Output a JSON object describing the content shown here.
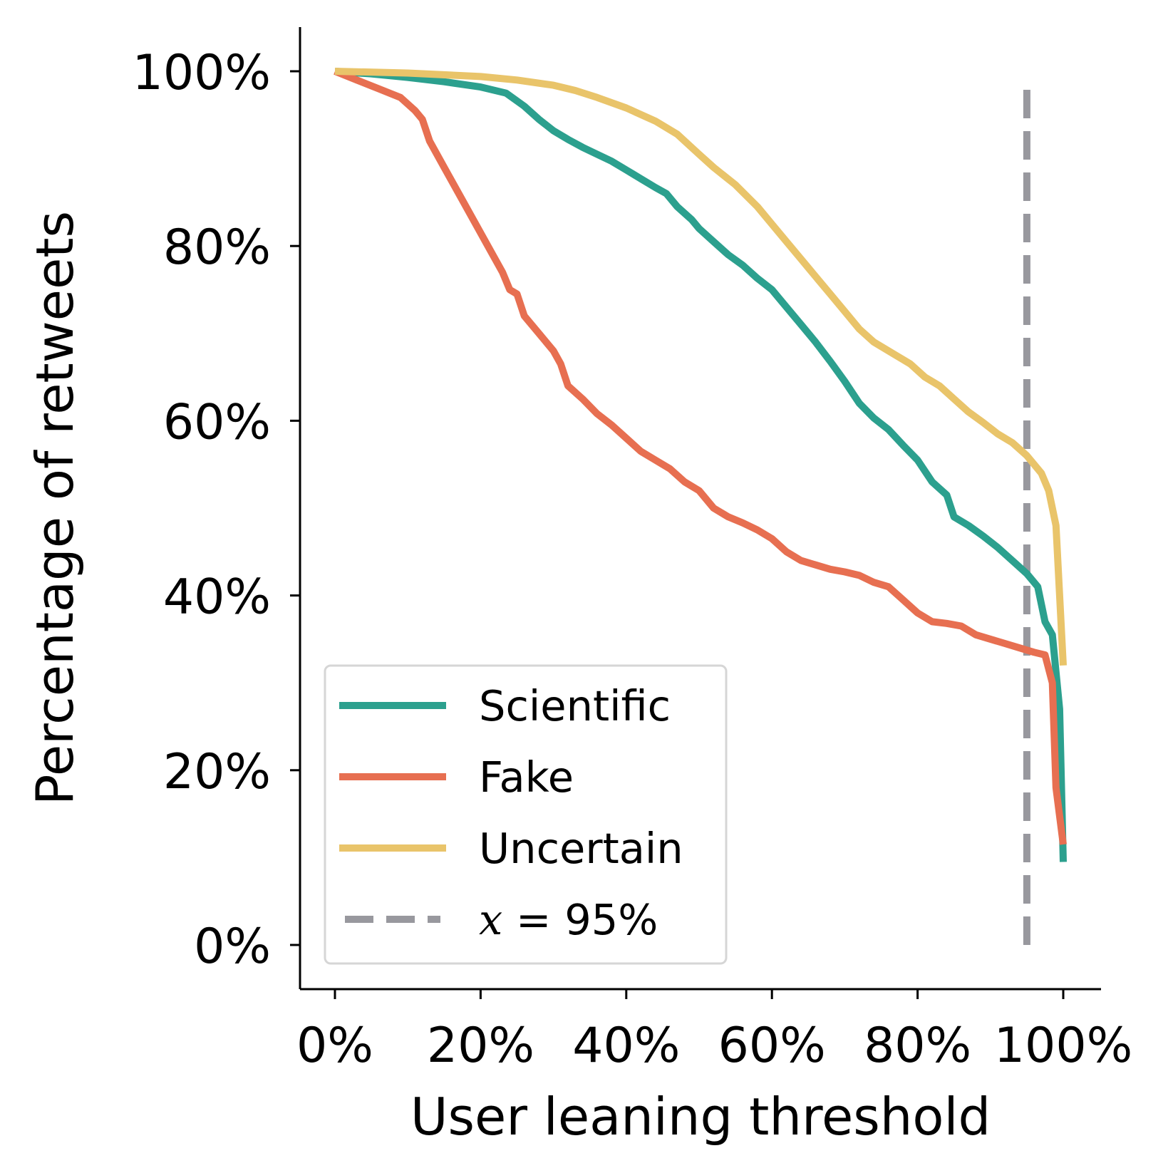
{
  "chart_data": {
    "type": "line",
    "xlabel": "User leaning threshold",
    "ylabel": "Percentage of retweets",
    "xlim": [
      -0.05,
      1.05
    ],
    "ylim": [
      -0.05,
      1.05
    ],
    "xticks": [
      0,
      0.2,
      0.4,
      0.6,
      0.8,
      1.0
    ],
    "xtick_labels": [
      "0%",
      "20%",
      "40%",
      "60%",
      "80%",
      "100%"
    ],
    "yticks": [
      0,
      0.2,
      0.4,
      0.6,
      0.8,
      1.0
    ],
    "ytick_labels": [
      "0%",
      "20%",
      "40%",
      "60%",
      "80%",
      "100%"
    ],
    "grid": false,
    "legend_position": "lower-left",
    "series": [
      {
        "name": "Scientific",
        "color": "#2ca08e",
        "points": [
          [
            0,
            1.0
          ],
          [
            0.05,
            0.997
          ],
          [
            0.1,
            0.993
          ],
          [
            0.15,
            0.988
          ],
          [
            0.2,
            0.982
          ],
          [
            0.235,
            0.975
          ],
          [
            0.26,
            0.96
          ],
          [
            0.28,
            0.945
          ],
          [
            0.3,
            0.932
          ],
          [
            0.32,
            0.922
          ],
          [
            0.34,
            0.913
          ],
          [
            0.36,
            0.905
          ],
          [
            0.38,
            0.897
          ],
          [
            0.4,
            0.887
          ],
          [
            0.42,
            0.877
          ],
          [
            0.44,
            0.867
          ],
          [
            0.455,
            0.86
          ],
          [
            0.47,
            0.845
          ],
          [
            0.49,
            0.83
          ],
          [
            0.5,
            0.82
          ],
          [
            0.52,
            0.805
          ],
          [
            0.54,
            0.79
          ],
          [
            0.56,
            0.778
          ],
          [
            0.58,
            0.763
          ],
          [
            0.6,
            0.75
          ],
          [
            0.62,
            0.73
          ],
          [
            0.64,
            0.71
          ],
          [
            0.66,
            0.69
          ],
          [
            0.68,
            0.668
          ],
          [
            0.7,
            0.645
          ],
          [
            0.72,
            0.62
          ],
          [
            0.74,
            0.603
          ],
          [
            0.76,
            0.59
          ],
          [
            0.78,
            0.572
          ],
          [
            0.8,
            0.555
          ],
          [
            0.82,
            0.53
          ],
          [
            0.84,
            0.515
          ],
          [
            0.85,
            0.49
          ],
          [
            0.87,
            0.48
          ],
          [
            0.89,
            0.468
          ],
          [
            0.91,
            0.455
          ],
          [
            0.93,
            0.44
          ],
          [
            0.95,
            0.425
          ],
          [
            0.965,
            0.41
          ],
          [
            0.975,
            0.37
          ],
          [
            0.985,
            0.355
          ],
          [
            0.995,
            0.27
          ],
          [
            1.0,
            0.095
          ]
        ]
      },
      {
        "name": "Fake",
        "color": "#e76f51",
        "points": [
          [
            0,
            1.0
          ],
          [
            0.03,
            0.99
          ],
          [
            0.06,
            0.98
          ],
          [
            0.09,
            0.97
          ],
          [
            0.11,
            0.955
          ],
          [
            0.12,
            0.945
          ],
          [
            0.13,
            0.92
          ],
          [
            0.15,
            0.89
          ],
          [
            0.17,
            0.86
          ],
          [
            0.19,
            0.83
          ],
          [
            0.21,
            0.8
          ],
          [
            0.23,
            0.77
          ],
          [
            0.24,
            0.75
          ],
          [
            0.25,
            0.745
          ],
          [
            0.26,
            0.72
          ],
          [
            0.28,
            0.7
          ],
          [
            0.3,
            0.68
          ],
          [
            0.31,
            0.665
          ],
          [
            0.32,
            0.64
          ],
          [
            0.34,
            0.625
          ],
          [
            0.36,
            0.608
          ],
          [
            0.38,
            0.595
          ],
          [
            0.4,
            0.58
          ],
          [
            0.42,
            0.565
          ],
          [
            0.44,
            0.555
          ],
          [
            0.46,
            0.545
          ],
          [
            0.48,
            0.53
          ],
          [
            0.5,
            0.52
          ],
          [
            0.52,
            0.5
          ],
          [
            0.54,
            0.49
          ],
          [
            0.56,
            0.483
          ],
          [
            0.58,
            0.475
          ],
          [
            0.6,
            0.465
          ],
          [
            0.62,
            0.45
          ],
          [
            0.64,
            0.44
          ],
          [
            0.66,
            0.435
          ],
          [
            0.68,
            0.43
          ],
          [
            0.7,
            0.427
          ],
          [
            0.72,
            0.423
          ],
          [
            0.74,
            0.415
          ],
          [
            0.76,
            0.41
          ],
          [
            0.78,
            0.395
          ],
          [
            0.8,
            0.38
          ],
          [
            0.82,
            0.37
          ],
          [
            0.84,
            0.368
          ],
          [
            0.86,
            0.365
          ],
          [
            0.88,
            0.355
          ],
          [
            0.9,
            0.35
          ],
          [
            0.92,
            0.345
          ],
          [
            0.94,
            0.34
          ],
          [
            0.96,
            0.335
          ],
          [
            0.975,
            0.332
          ],
          [
            0.985,
            0.3
          ],
          [
            0.99,
            0.18
          ],
          [
            1.0,
            0.115
          ]
        ]
      },
      {
        "name": "Uncertain",
        "color": "#e9c46a",
        "points": [
          [
            0,
            1.0
          ],
          [
            0.1,
            0.998
          ],
          [
            0.2,
            0.994
          ],
          [
            0.25,
            0.99
          ],
          [
            0.3,
            0.984
          ],
          [
            0.33,
            0.978
          ],
          [
            0.36,
            0.97
          ],
          [
            0.4,
            0.958
          ],
          [
            0.44,
            0.943
          ],
          [
            0.47,
            0.928
          ],
          [
            0.5,
            0.905
          ],
          [
            0.52,
            0.89
          ],
          [
            0.55,
            0.87
          ],
          [
            0.58,
            0.845
          ],
          [
            0.6,
            0.825
          ],
          [
            0.62,
            0.805
          ],
          [
            0.64,
            0.785
          ],
          [
            0.66,
            0.765
          ],
          [
            0.68,
            0.745
          ],
          [
            0.7,
            0.725
          ],
          [
            0.72,
            0.705
          ],
          [
            0.74,
            0.69
          ],
          [
            0.76,
            0.68
          ],
          [
            0.77,
            0.675
          ],
          [
            0.79,
            0.665
          ],
          [
            0.81,
            0.65
          ],
          [
            0.83,
            0.64
          ],
          [
            0.85,
            0.625
          ],
          [
            0.87,
            0.61
          ],
          [
            0.89,
            0.598
          ],
          [
            0.91,
            0.585
          ],
          [
            0.93,
            0.575
          ],
          [
            0.95,
            0.56
          ],
          [
            0.97,
            0.54
          ],
          [
            0.98,
            0.52
          ],
          [
            0.99,
            0.48
          ],
          [
            0.995,
            0.4
          ],
          [
            1.0,
            0.32
          ]
        ]
      },
      {
        "name": "x = 95%",
        "color": "#98989e",
        "dashed": true,
        "points": [
          [
            0.95,
            0.0
          ],
          [
            0.95,
            0.99
          ]
        ]
      }
    ]
  }
}
